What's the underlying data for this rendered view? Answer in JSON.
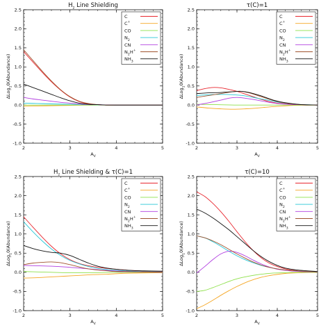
{
  "chart_data": [
    {
      "type": "line",
      "title": "H2 Line Shielding",
      "xlabel": "AV",
      "ylabel": "ΔLog10(Abundance)",
      "xlim": [
        2,
        5
      ],
      "ylim": [
        -1.0,
        2.5
      ],
      "legend": "top-right",
      "series": [
        {
          "name": "C",
          "color": "#e8262e",
          "x": [
            2,
            2.2,
            2.4,
            2.6,
            2.8,
            3.0,
            3.2,
            3.4,
            3.6,
            3.8,
            4.0,
            4.5,
            5.0
          ],
          "y": [
            1.4,
            1.13,
            0.86,
            0.61,
            0.39,
            0.21,
            0.09,
            0.03,
            0.01,
            0.0,
            0.0,
            0.0,
            0.0
          ]
        },
        {
          "name": "C+",
          "color": "#f5a623",
          "x": [
            2,
            2.5,
            3.0,
            3.5,
            4.0,
            5.0
          ],
          "y": [
            -0.03,
            -0.02,
            -0.01,
            0.0,
            0.0,
            0.0
          ]
        },
        {
          "name": "CO",
          "color": "#8ee04a",
          "x": [
            2,
            2.5,
            3.0,
            3.5,
            4.0,
            5.0
          ],
          "y": [
            0.0,
            0.0,
            0.0,
            0.0,
            0.0,
            0.0
          ]
        },
        {
          "name": "N2",
          "color": "#26c7d6",
          "x": [
            2,
            2.3,
            2.6,
            3.0,
            3.4,
            4.0,
            5.0
          ],
          "y": [
            0.05,
            0.04,
            0.03,
            0.02,
            0.01,
            0.0,
            0.0
          ]
        },
        {
          "name": "CN",
          "color": "#b13de0",
          "x": [
            2,
            2.2,
            2.4,
            2.6,
            2.8,
            3.0,
            3.3,
            3.6,
            4.0,
            5.0
          ],
          "y": [
            0.2,
            0.16,
            0.13,
            0.1,
            0.07,
            0.05,
            0.02,
            0.01,
            0.0,
            0.0
          ]
        },
        {
          "name": "N2H+",
          "color": "#a0522d",
          "x": [
            2,
            2.2,
            2.4,
            2.6,
            2.8,
            3.0,
            3.2,
            3.4,
            3.6,
            3.8,
            4.0,
            4.5,
            5.0
          ],
          "y": [
            1.45,
            1.17,
            0.89,
            0.63,
            0.4,
            0.22,
            0.1,
            0.04,
            0.01,
            0.0,
            0.0,
            0.0,
            0.0
          ]
        },
        {
          "name": "NH3",
          "color": "#111111",
          "x": [
            2,
            2.2,
            2.4,
            2.6,
            2.8,
            3.0,
            3.2,
            3.4,
            3.6,
            3.8,
            4.0,
            4.5,
            5.0
          ],
          "y": [
            0.55,
            0.46,
            0.37,
            0.28,
            0.19,
            0.11,
            0.05,
            0.02,
            0.01,
            0.0,
            0.0,
            0.0,
            0.0
          ]
        }
      ]
    },
    {
      "type": "line",
      "title": "τ(C)=1",
      "xlabel": "AV",
      "ylabel": "ΔLog10(Abundance)",
      "xlim": [
        2,
        5
      ],
      "ylim": [
        -1.0,
        2.5
      ],
      "legend": "top-right",
      "series": [
        {
          "name": "C",
          "color": "#e8262e",
          "x": [
            2,
            2.2,
            2.4,
            2.6,
            2.8,
            3.0,
            3.2,
            3.4,
            3.6,
            3.8,
            4.0,
            4.3,
            4.6,
            5.0
          ],
          "y": [
            0.38,
            0.43,
            0.46,
            0.45,
            0.41,
            0.36,
            0.29,
            0.22,
            0.15,
            0.09,
            0.05,
            0.02,
            0.01,
            0.0
          ]
        },
        {
          "name": "C+",
          "color": "#f5a623",
          "x": [
            2,
            2.3,
            2.6,
            2.9,
            3.2,
            3.5,
            3.8,
            4.1,
            4.4,
            5.0
          ],
          "y": [
            -0.05,
            -0.08,
            -0.1,
            -0.11,
            -0.1,
            -0.08,
            -0.05,
            -0.03,
            -0.01,
            0.0
          ]
        },
        {
          "name": "CO",
          "color": "#8ee04a",
          "x": [
            2,
            2.5,
            3.0,
            3.5,
            4.0,
            5.0
          ],
          "y": [
            0.02,
            0.01,
            0.0,
            0.0,
            0.0,
            0.0
          ]
        },
        {
          "name": "N2",
          "color": "#26c7d6",
          "x": [
            2,
            2.3,
            2.6,
            2.9,
            3.2,
            3.5,
            3.8,
            4.1,
            4.5,
            5.0
          ],
          "y": [
            0.25,
            0.27,
            0.28,
            0.27,
            0.24,
            0.18,
            0.12,
            0.06,
            0.02,
            0.0
          ]
        },
        {
          "name": "CN",
          "color": "#b13de0",
          "x": [
            2,
            2.3,
            2.6,
            2.8,
            3.0,
            3.2,
            3.5,
            3.8,
            4.1,
            4.5,
            5.0
          ],
          "y": [
            0.0,
            0.06,
            0.13,
            0.18,
            0.2,
            0.18,
            0.13,
            0.07,
            0.03,
            0.01,
            0.0
          ]
        },
        {
          "name": "N2H+",
          "color": "#a0522d",
          "x": [
            2,
            2.3,
            2.6,
            2.9,
            3.1,
            3.3,
            3.6,
            3.9,
            4.2,
            4.6,
            5.0
          ],
          "y": [
            0.2,
            0.25,
            0.3,
            0.35,
            0.36,
            0.32,
            0.22,
            0.12,
            0.05,
            0.01,
            0.0
          ]
        },
        {
          "name": "NH3",
          "color": "#111111",
          "x": [
            2,
            2.3,
            2.6,
            2.9,
            3.1,
            3.3,
            3.6,
            3.9,
            4.2,
            4.6,
            5.0
          ],
          "y": [
            0.3,
            0.32,
            0.33,
            0.35,
            0.36,
            0.33,
            0.24,
            0.13,
            0.06,
            0.01,
            0.0
          ]
        }
      ]
    },
    {
      "type": "line",
      "title": "H2 Line Shielding & τ(C)=1",
      "xlabel": "AV",
      "ylabel": "ΔLog10(Abundance)",
      "xlim": [
        2,
        5
      ],
      "ylim": [
        -1.0,
        2.5
      ],
      "legend": "top-right",
      "series": [
        {
          "name": "C",
          "color": "#e8262e",
          "x": [
            2,
            2.2,
            2.4,
            2.6,
            2.8,
            3.0,
            3.2,
            3.4,
            3.6,
            3.8,
            4.0,
            4.3,
            4.6,
            5.0
          ],
          "y": [
            1.45,
            1.18,
            0.92,
            0.68,
            0.48,
            0.33,
            0.23,
            0.17,
            0.13,
            0.1,
            0.08,
            0.05,
            0.03,
            0.02
          ]
        },
        {
          "name": "C+",
          "color": "#f5a623",
          "x": [
            2,
            2.3,
            2.6,
            2.9,
            3.2,
            3.5,
            3.8,
            4.1,
            4.5,
            5.0
          ],
          "y": [
            -0.15,
            -0.14,
            -0.12,
            -0.1,
            -0.08,
            -0.06,
            -0.05,
            -0.03,
            -0.02,
            -0.01
          ]
        },
        {
          "name": "CO",
          "color": "#8ee04a",
          "x": [
            2,
            2.3,
            2.6,
            2.9,
            3.2,
            3.6,
            4.0,
            5.0
          ],
          "y": [
            0.02,
            0.01,
            0.0,
            -0.01,
            -0.01,
            -0.01,
            0.0,
            0.0
          ]
        },
        {
          "name": "N2",
          "color": "#26c7d6",
          "x": [
            2,
            2.2,
            2.4,
            2.6,
            2.8,
            3.0,
            3.2,
            3.4,
            3.6,
            3.8,
            4.0,
            4.5,
            5.0
          ],
          "y": [
            1.32,
            1.06,
            0.82,
            0.61,
            0.44,
            0.31,
            0.22,
            0.15,
            0.1,
            0.07,
            0.05,
            0.02,
            0.01
          ]
        },
        {
          "name": "CN",
          "color": "#b13de0",
          "x": [
            2,
            2.3,
            2.6,
            2.9,
            3.2,
            3.5,
            3.8,
            4.1,
            4.5,
            5.0
          ],
          "y": [
            0.18,
            0.17,
            0.16,
            0.14,
            0.11,
            0.08,
            0.05,
            0.03,
            0.01,
            0.0
          ]
        },
        {
          "name": "N2H+",
          "color": "#a0522d",
          "x": [
            2,
            2.2,
            2.4,
            2.6,
            2.8,
            3.0,
            3.2,
            3.4,
            3.6,
            3.8,
            4.0,
            4.5,
            5.0
          ],
          "y": [
            0.2,
            0.24,
            0.26,
            0.27,
            0.25,
            0.2,
            0.14,
            0.09,
            0.06,
            0.04,
            0.02,
            0.01,
            0.0
          ]
        },
        {
          "name": "NH3",
          "color": "#111111",
          "x": [
            2,
            2.2,
            2.4,
            2.6,
            2.8,
            3.0,
            3.2,
            3.4,
            3.6,
            3.8,
            4.0,
            4.3,
            4.6,
            5.0
          ],
          "y": [
            0.7,
            0.62,
            0.56,
            0.52,
            0.5,
            0.44,
            0.34,
            0.24,
            0.16,
            0.11,
            0.08,
            0.05,
            0.04,
            0.03
          ]
        }
      ]
    },
    {
      "type": "line",
      "title": "τ(C)=10",
      "xlabel": "AV",
      "ylabel": "ΔLog10(Abundance)",
      "xlim": [
        2,
        5
      ],
      "ylim": [
        -1.0,
        2.5
      ],
      "legend": "top-right",
      "series": [
        {
          "name": "C",
          "color": "#e8262e",
          "x": [
            2,
            2.2,
            2.4,
            2.6,
            2.8,
            3.0,
            3.2,
            3.4,
            3.6,
            3.8,
            4.0,
            4.2,
            4.5,
            5.0
          ],
          "y": [
            2.1,
            1.98,
            1.8,
            1.58,
            1.33,
            1.06,
            0.8,
            0.57,
            0.38,
            0.24,
            0.15,
            0.09,
            0.04,
            0.01
          ]
        },
        {
          "name": "C+",
          "color": "#f5a623",
          "x": [
            2,
            2.2,
            2.4,
            2.6,
            2.8,
            3.0,
            3.3,
            3.6,
            3.9,
            4.2,
            4.6,
            5.0
          ],
          "y": [
            -0.95,
            -0.85,
            -0.73,
            -0.6,
            -0.48,
            -0.37,
            -0.23,
            -0.13,
            -0.07,
            -0.03,
            -0.01,
            0.0
          ]
        },
        {
          "name": "CO",
          "color": "#8ee04a",
          "x": [
            2,
            2.2,
            2.4,
            2.6,
            2.8,
            3.0,
            3.3,
            3.6,
            3.9,
            4.2,
            4.6,
            5.0
          ],
          "y": [
            -0.5,
            -0.47,
            -0.4,
            -0.32,
            -0.24,
            -0.17,
            -0.1,
            -0.05,
            -0.02,
            -0.01,
            0.0,
            0.0
          ]
        },
        {
          "name": "N2",
          "color": "#26c7d6",
          "x": [
            2,
            2.2,
            2.4,
            2.6,
            2.8,
            3.0,
            3.2,
            3.4,
            3.6,
            3.8,
            4.0,
            4.3,
            4.6,
            5.0
          ],
          "y": [
            0.95,
            0.9,
            0.8,
            0.68,
            0.55,
            0.43,
            0.33,
            0.25,
            0.18,
            0.13,
            0.09,
            0.05,
            0.03,
            0.01
          ]
        },
        {
          "name": "CN",
          "color": "#b13de0",
          "x": [
            2,
            2.2,
            2.4,
            2.6,
            2.8,
            3.0,
            3.2,
            3.4,
            3.6,
            3.8,
            4.0,
            4.3,
            4.6,
            5.0
          ],
          "y": [
            -0.02,
            0.15,
            0.33,
            0.48,
            0.55,
            0.52,
            0.43,
            0.32,
            0.22,
            0.14,
            0.08,
            0.04,
            0.02,
            0.01
          ]
        },
        {
          "name": "N2H+",
          "color": "#a0522d",
          "x": [
            2,
            2.2,
            2.4,
            2.6,
            2.8,
            3.0,
            3.2,
            3.4,
            3.6,
            3.8,
            4.0,
            4.3,
            4.6,
            5.0
          ],
          "y": [
            0.95,
            0.9,
            0.82,
            0.72,
            0.6,
            0.48,
            0.37,
            0.27,
            0.19,
            0.13,
            0.09,
            0.05,
            0.03,
            0.01
          ]
        },
        {
          "name": "NH3",
          "color": "#111111",
          "x": [
            2,
            2.2,
            2.4,
            2.6,
            2.8,
            3.0,
            3.2,
            3.4,
            3.6,
            3.8,
            4.0,
            4.2,
            4.5,
            5.0
          ],
          "y": [
            1.65,
            1.55,
            1.42,
            1.27,
            1.11,
            0.93,
            0.75,
            0.57,
            0.41,
            0.28,
            0.18,
            0.11,
            0.06,
            0.02
          ]
        }
      ]
    }
  ]
}
